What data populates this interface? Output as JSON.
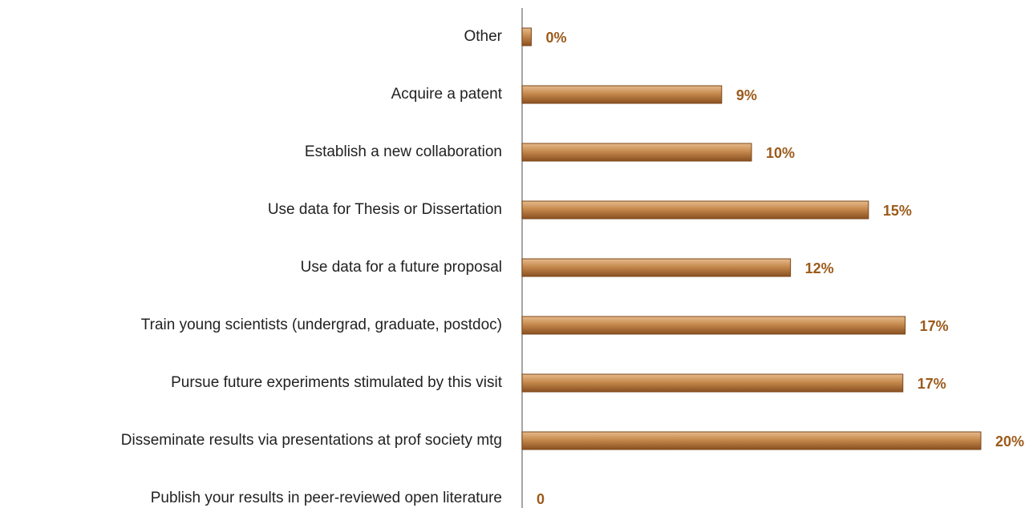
{
  "chart_data": {
    "type": "hbar",
    "categories": [
      "Other",
      "Acquire a patent",
      "Establish a new collaboration",
      "Use data for Thesis or Dissertation",
      "Use data for a future proposal",
      "Train young scientists (undergrad, graduate, postdoc)",
      "Pursue future experiments stimulated by this visit",
      "Disseminate results via presentations at prof society mtg",
      "Publish your results in peer-reviewed open literature"
    ],
    "values": [
      0.4,
      8.7,
      10,
      15.1,
      11.7,
      16.7,
      16.6,
      20,
      0
    ],
    "value_labels": [
      "0%",
      "9%",
      "10%",
      "15%",
      "12%",
      "17%",
      "17%",
      "20%",
      "0"
    ],
    "color": "#b87333"
  }
}
